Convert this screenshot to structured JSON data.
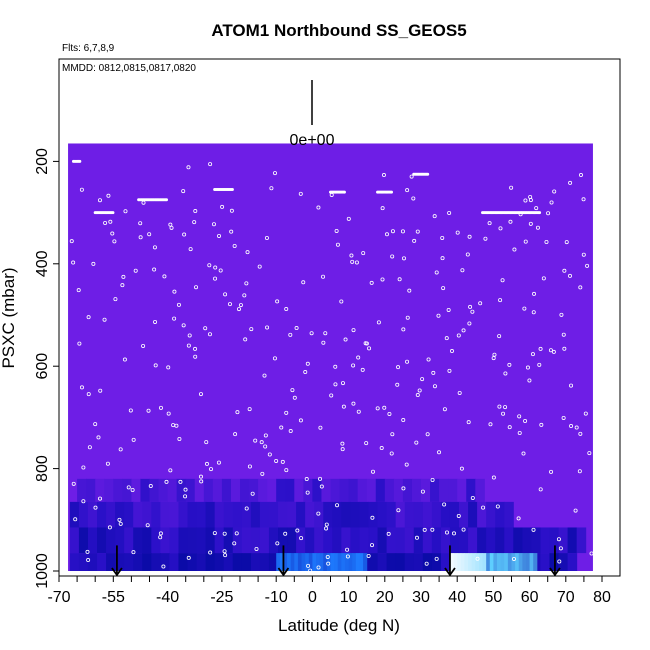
{
  "chart_data": {
    "type": "heatmap",
    "title": "ATOM1 Northbound SS_GEOS5",
    "annotations": {
      "flights": "Flts: 6,7,8,9",
      "dates": "MMDD: 0812,0815,0817,0820"
    },
    "xlabel": "Latitude (deg N)",
    "ylabel": "PSXC (mbar)",
    "xlim": [
      -70,
      80
    ],
    "ylim": [
      1000,
      0
    ],
    "x_tick_labels": [
      "-70",
      "-55",
      "-40",
      "-25",
      "-10",
      "0",
      "10",
      "20",
      "30",
      "40",
      "50",
      "60",
      "70",
      "80"
    ],
    "y_tick_labels": [
      "200",
      "400",
      "600",
      "800",
      "1000"
    ],
    "y_ticks": [
      200,
      400,
      600,
      800,
      1000
    ],
    "scale_label": "0e+00",
    "colors": {
      "background_field": "#6e1ee6",
      "mid_blue": "#2a10c8",
      "deep_blue": "#0b0ba8",
      "bright_blue": "#1e7cff",
      "cyan": "#5fd0ff",
      "near_white": "#f2faff",
      "points": "#ffffff",
      "arrows": "#000000"
    },
    "field_extent": {
      "x": [
        -67.5,
        77.5
      ],
      "p": [
        165,
        1000
      ]
    },
    "boundary_layer_bands": [
      {
        "p": [
          820,
          865
        ],
        "x": [
          -65,
          47
        ],
        "intensity": 0.35
      },
      {
        "p": [
          865,
          915
        ],
        "x": [
          -67,
          55
        ],
        "intensity": 0.55
      },
      {
        "p": [
          915,
          965
        ],
        "x": [
          -67,
          75
        ],
        "intensity": 0.7
      },
      {
        "p": [
          965,
          1000
        ],
        "x": [
          -67,
          72
        ],
        "intensity": 0.85
      }
    ],
    "bright_segments": [
      {
        "x": [
          -10,
          15
        ],
        "p": [
          965,
          1000
        ],
        "color": "bright_blue"
      },
      {
        "x": [
          38,
          48
        ],
        "p": [
          965,
          1000
        ],
        "color": "near_white"
      },
      {
        "x": [
          48,
          62
        ],
        "p": [
          965,
          1000
        ],
        "color": "cyan"
      }
    ],
    "profile_arrows_x": [
      -54,
      -8,
      38,
      67
    ],
    "flat_legs": [
      {
        "x": [
          -48,
          -40
        ],
        "p": 275
      },
      {
        "x": [
          -60,
          -55
        ],
        "p": 300
      },
      {
        "x": [
          47,
          63
        ],
        "p": 300
      },
      {
        "x": [
          -27,
          -22
        ],
        "p": 255
      },
      {
        "x": [
          5,
          9
        ],
        "p": 260
      },
      {
        "x": [
          18,
          22
        ],
        "p": 260
      },
      {
        "x": [
          28,
          32
        ],
        "p": 225
      },
      {
        "x": [
          -66,
          -64
        ],
        "p": 200
      }
    ]
  }
}
